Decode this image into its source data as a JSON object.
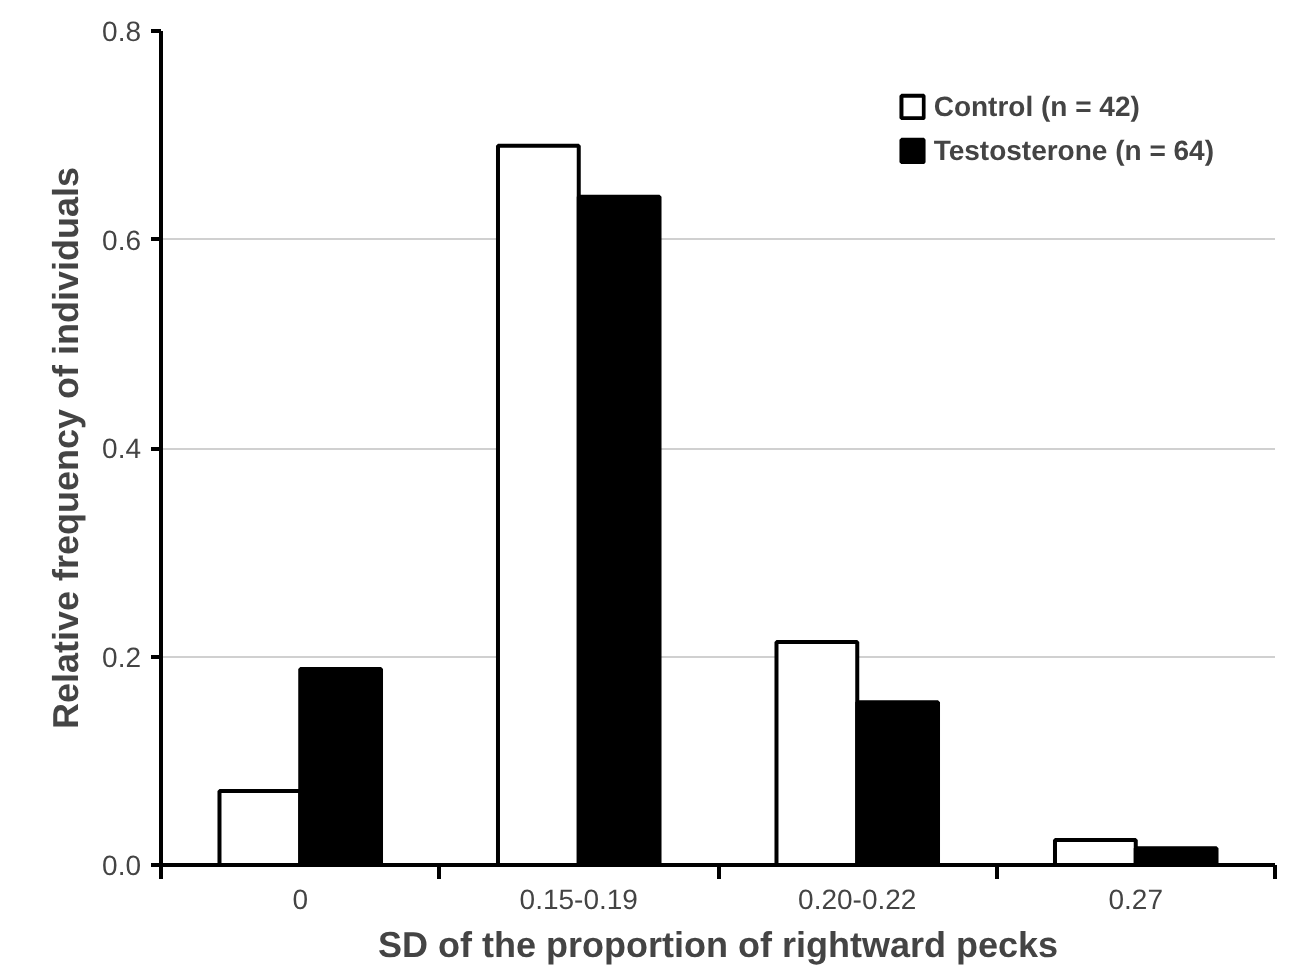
{
  "chart_data": {
    "type": "bar",
    "xlabel": "SD of the proportion of rightward pecks",
    "ylabel": "Relative frequency of individuals",
    "categories": [
      "0",
      "0.15-0.19",
      "0.20-0.22",
      "0.27"
    ],
    "series": [
      {
        "name": "Control (n = 42)",
        "color": "#ffffff",
        "values": [
          0.071,
          0.69,
          0.214,
          0.024
        ]
      },
      {
        "name": "Testosterone (n = 64)",
        "color": "#000000",
        "values": [
          0.188,
          0.641,
          0.156,
          0.016
        ]
      }
    ],
    "ylim": [
      0,
      0.8
    ],
    "yticks": [
      {
        "value": 0,
        "label": "0.0"
      },
      0.2,
      0.4,
      0.6,
      0.8
    ],
    "grid": "y",
    "legend": "top right"
  }
}
